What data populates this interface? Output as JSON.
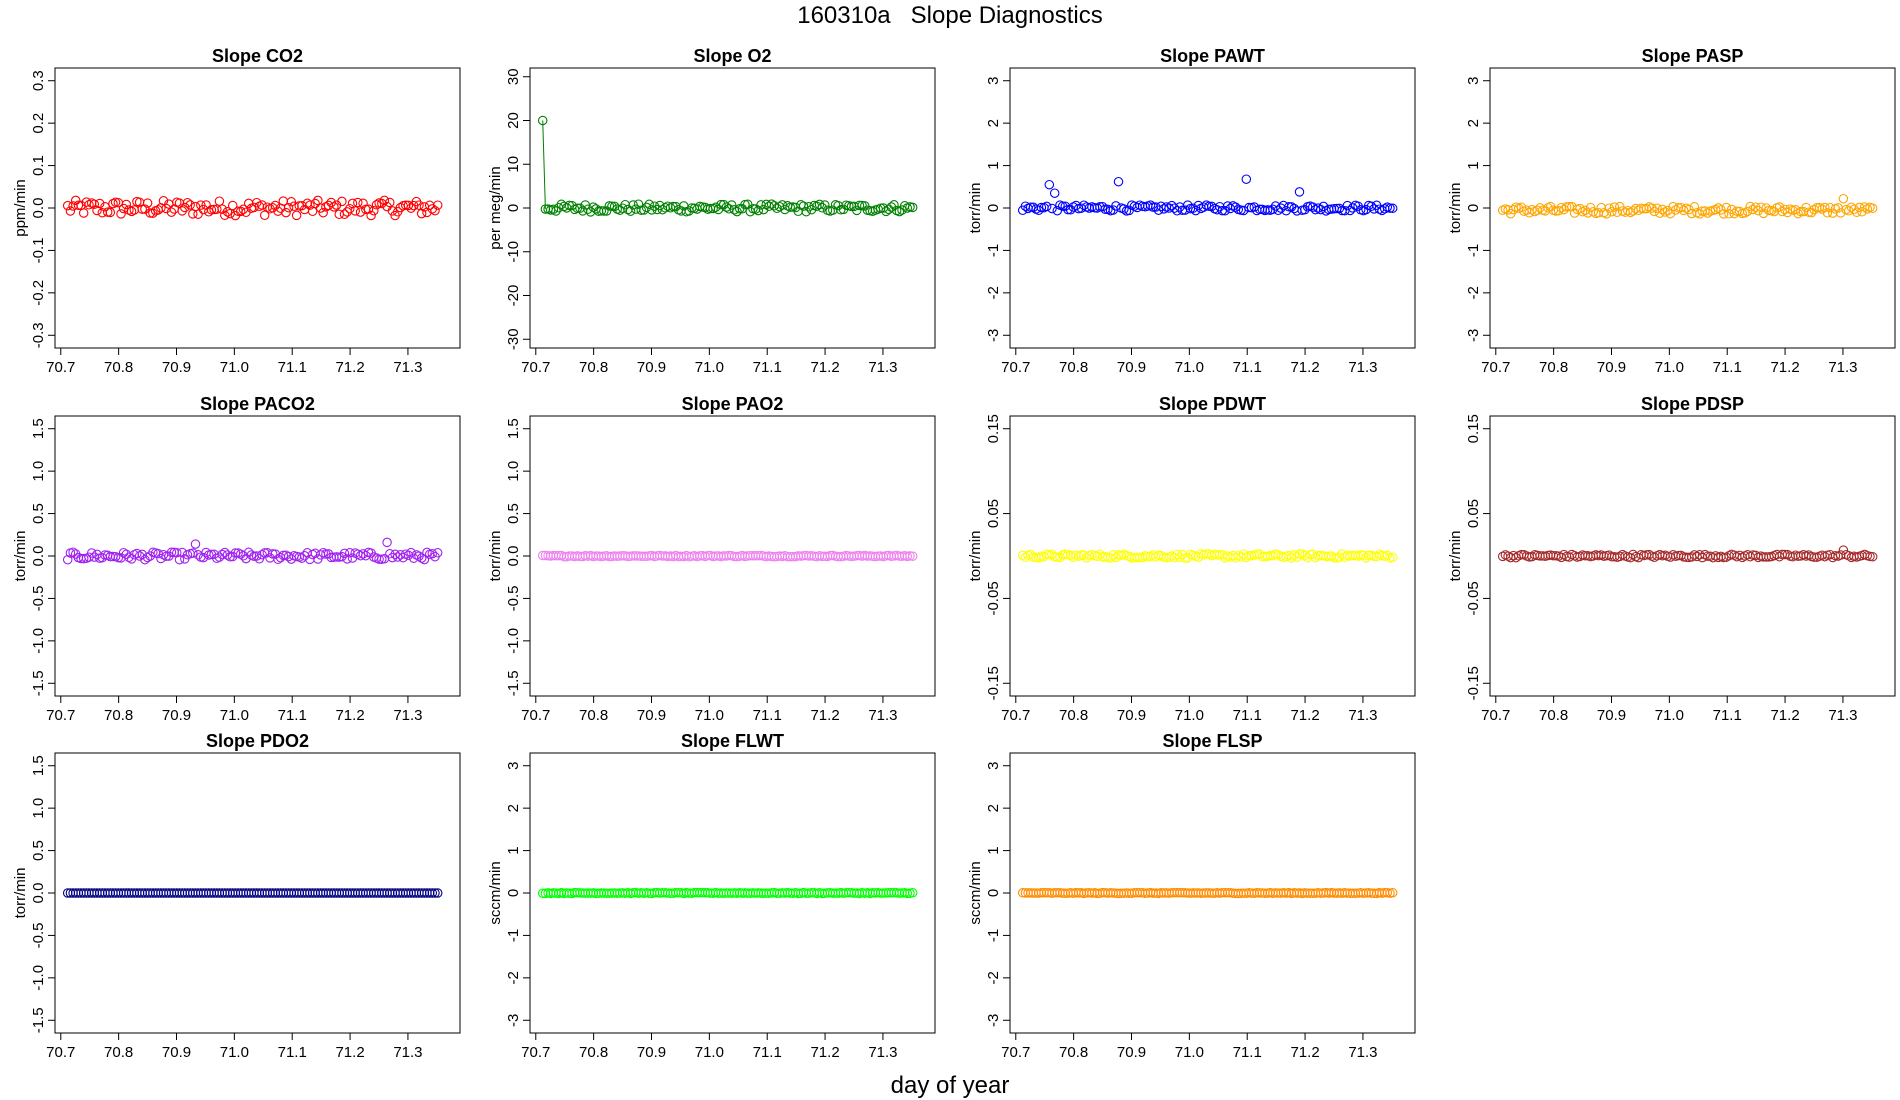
{
  "title": "160310a   Slope Diagnostics",
  "xlabel": "day of year",
  "x_ticks": [
    "70.7",
    "70.8",
    "70.9",
    "71.0",
    "71.1",
    "71.2",
    "71.3"
  ],
  "chart_data": [
    {
      "type": "scatter",
      "title": "Slope CO2",
      "ylabel": "ppm/min",
      "color": "#ff0000",
      "xlim": [
        70.69,
        71.39
      ],
      "ylim": [
        -0.33,
        0.33
      ],
      "y_ticks": [
        "-0.3",
        "-0.2",
        "-0.1",
        "0.0",
        "0.1",
        "0.2",
        "0.3"
      ],
      "x_start": 70.712,
      "x_step": 0.0046,
      "baseline": 0.0,
      "noise": 0.018,
      "spikes": []
    },
    {
      "type": "scatter",
      "title": "Slope O2",
      "ylabel": "per meg/min",
      "color": "#008000",
      "xlim": [
        70.69,
        71.39
      ],
      "ylim": [
        -32,
        32
      ],
      "y_ticks": [
        "-30",
        "-20",
        "-10",
        "0",
        "10",
        "20",
        "30"
      ],
      "x_start": 70.712,
      "x_step": 0.0046,
      "baseline": 0.0,
      "noise": 0.9,
      "spikes": [
        [
          0,
          20
        ]
      ],
      "connect_first": true
    },
    {
      "type": "scatter",
      "title": "Slope PAWT",
      "ylabel": "torr/min",
      "color": "#0000ff",
      "xlim": [
        70.69,
        71.39
      ],
      "ylim": [
        -3.3,
        3.3
      ],
      "y_ticks": [
        "-3",
        "-2",
        "-1",
        "0",
        "1",
        "2",
        "3"
      ],
      "x_start": 70.712,
      "x_step": 0.0046,
      "baseline": 0.0,
      "noise": 0.07,
      "spikes": [
        [
          10,
          0.55
        ],
        [
          12,
          0.35
        ],
        [
          36,
          0.62
        ],
        [
          84,
          0.68
        ],
        [
          104,
          0.38
        ]
      ]
    },
    {
      "type": "scatter",
      "title": "Slope PASP",
      "ylabel": "torr/min",
      "color": "#ffa500",
      "xlim": [
        70.69,
        71.39
      ],
      "ylim": [
        -3.3,
        3.3
      ],
      "y_ticks": [
        "-3",
        "-2",
        "-1",
        "0",
        "1",
        "2",
        "3"
      ],
      "x_start": 70.712,
      "x_step": 0.0046,
      "baseline": -0.05,
      "noise": 0.09,
      "spikes": [
        [
          128,
          0.22
        ]
      ]
    },
    {
      "type": "scatter",
      "title": "Slope PACO2",
      "ylabel": "torr/min",
      "color": "#a020f0",
      "xlim": [
        70.69,
        71.39
      ],
      "ylim": [
        -1.65,
        1.65
      ],
      "y_ticks": [
        "-1.5",
        "-1.0",
        "-0.5",
        "0.0",
        "0.5",
        "1.0",
        "1.5"
      ],
      "x_start": 70.712,
      "x_step": 0.0046,
      "baseline": 0.0,
      "noise": 0.045,
      "spikes": [
        [
          48,
          0.14
        ],
        [
          120,
          0.16
        ]
      ]
    },
    {
      "type": "scatter",
      "title": "Slope PAO2",
      "ylabel": "torr/min",
      "color": "#ee82ee",
      "xlim": [
        70.69,
        71.39
      ],
      "ylim": [
        -1.65,
        1.65
      ],
      "y_ticks": [
        "-1.5",
        "-1.0",
        "-0.5",
        "0.0",
        "0.5",
        "1.0",
        "1.5"
      ],
      "x_start": 70.712,
      "x_step": 0.0046,
      "baseline": 0.0,
      "noise": 0.008,
      "spikes": []
    },
    {
      "type": "scatter",
      "title": "Slope PDWT",
      "ylabel": "torr/min",
      "color": "#ffff00",
      "xlim": [
        70.69,
        71.39
      ],
      "ylim": [
        -0.165,
        0.165
      ],
      "y_ticks": [
        "-0.15",
        "-0.05",
        "0.05",
        "0.15"
      ],
      "x_start": 70.712,
      "x_step": 0.0046,
      "baseline": 0.0,
      "noise": 0.0025,
      "spikes": []
    },
    {
      "type": "scatter",
      "title": "Slope PDSP",
      "ylabel": "torr/min",
      "color": "#a52a2a",
      "xlim": [
        70.69,
        71.39
      ],
      "ylim": [
        -0.165,
        0.165
      ],
      "y_ticks": [
        "-0.15",
        "-0.05",
        "0.05",
        "0.15"
      ],
      "x_start": 70.712,
      "x_step": 0.0046,
      "baseline": 0.0,
      "noise": 0.002,
      "spikes": [
        [
          128,
          0.007
        ]
      ]
    },
    {
      "type": "scatter",
      "title": "Slope PDO2",
      "ylabel": "torr/min",
      "color": "#000080",
      "xlim": [
        70.69,
        71.39
      ],
      "ylim": [
        -1.65,
        1.65
      ],
      "y_ticks": [
        "-1.5",
        "-1.0",
        "-0.5",
        "0.0",
        "0.5",
        "1.0",
        "1.5"
      ],
      "x_start": 70.712,
      "x_step": 0.0046,
      "baseline": 0.0,
      "noise": 0.0,
      "spikes": []
    },
    {
      "type": "scatter",
      "title": "Slope FLWT",
      "ylabel": "sccm/min",
      "color": "#00ff00",
      "xlim": [
        70.69,
        71.39
      ],
      "ylim": [
        -3.3,
        3.3
      ],
      "y_ticks": [
        "-3",
        "-2",
        "-1",
        "0",
        "1",
        "2",
        "3"
      ],
      "x_start": 70.712,
      "x_step": 0.0046,
      "baseline": 0.0,
      "noise": 0.01,
      "spikes": []
    },
    {
      "type": "scatter",
      "title": "Slope FLSP",
      "ylabel": "sccm/min",
      "color": "#ff8c00",
      "xlim": [
        70.69,
        71.39
      ],
      "ylim": [
        -3.3,
        3.3
      ],
      "y_ticks": [
        "-3",
        "-2",
        "-1",
        "0",
        "1",
        "2",
        "3"
      ],
      "x_start": 70.712,
      "x_step": 0.0046,
      "baseline": 0.0,
      "noise": 0.01,
      "spikes": []
    }
  ]
}
